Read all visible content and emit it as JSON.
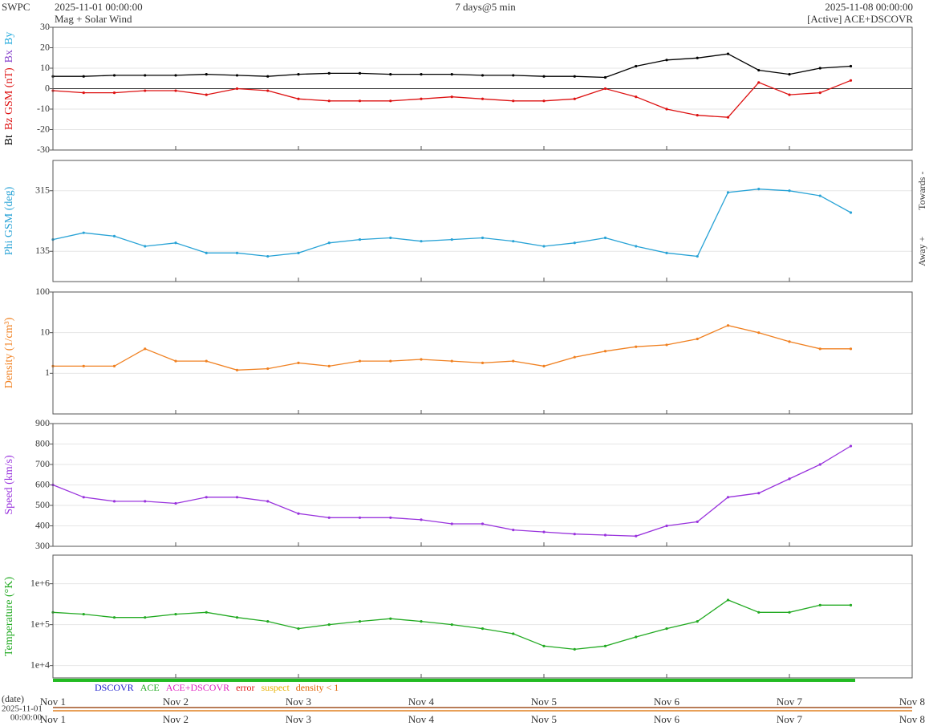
{
  "header": {
    "org": "SWPC",
    "start": "2025-11-01 00:00:00",
    "subtitle": "Mag + Solar Wind",
    "span": "7 days@5 min",
    "end": "2025-11-08 00:00:00",
    "source": "[Active] ACE+DSCOVR"
  },
  "legend": [
    {
      "text": "DSCOVR",
      "color": "#1a1acc"
    },
    {
      "text": "ACE",
      "color": "#22aa22"
    },
    {
      "text": "ACE+DSCOVR",
      "color": "#e020c0"
    },
    {
      "text": "error",
      "color": "#dd1111"
    },
    {
      "text": "suspect",
      "color": "#e8b000"
    },
    {
      "text": "density < 1",
      "color": "#e06000"
    }
  ],
  "x_axis": {
    "date_label": "(date)",
    "start_date": "2025-11-01",
    "start_time": "00:00:00",
    "xlim": [
      0,
      7
    ],
    "xticks": [
      {
        "value": 0,
        "label": "Nov 1"
      },
      {
        "value": 1,
        "label": "Nov 2"
      },
      {
        "value": 2,
        "label": "Nov 3"
      },
      {
        "value": 3,
        "label": "Nov 4"
      },
      {
        "value": 4,
        "label": "Nov 5"
      },
      {
        "value": 5,
        "label": "Nov 6"
      },
      {
        "value": 6,
        "label": "Nov 7"
      },
      {
        "value": 7,
        "label": "Nov 8"
      }
    ]
  },
  "chart_data": [
    {
      "type": "line",
      "ylabel_parts": [
        {
          "text": "Bt",
          "color": "#000000"
        },
        {
          "text": "Bz GSM (nT)",
          "color": "#dd1111"
        },
        {
          "text": "Bx",
          "color": "#8844cc"
        },
        {
          "text": "By",
          "color": "#22aadd"
        }
      ],
      "ylim": [
        -30,
        30
      ],
      "yticks": [
        -30,
        -20,
        -10,
        0,
        10,
        20,
        30
      ],
      "grid": true,
      "x": [
        0,
        0.25,
        0.5,
        0.75,
        1,
        1.25,
        1.5,
        1.75,
        2,
        2.25,
        2.5,
        2.75,
        3,
        3.25,
        3.5,
        3.75,
        4,
        4.25,
        4.5,
        4.75,
        5,
        5.25,
        5.5,
        5.75,
        6,
        6.25,
        6.5
      ],
      "series": [
        {
          "name": "Bt",
          "color": "#000000",
          "values": [
            6,
            6,
            6.5,
            6.5,
            6.5,
            7,
            6.5,
            6,
            7,
            7.5,
            7.5,
            7,
            7,
            7,
            6.5,
            6.5,
            6,
            6,
            5.5,
            11,
            14,
            15,
            17,
            9,
            7,
            10,
            11
          ]
        },
        {
          "name": "Bz",
          "color": "#dd1111",
          "values": [
            -1,
            -2,
            -2,
            -1,
            -1,
            -3,
            0,
            -1,
            -5,
            -6,
            -6,
            -6,
            -5,
            -4,
            -5,
            -6,
            -6,
            -5,
            0,
            -4,
            -10,
            -13,
            -14,
            3,
            -3,
            -2,
            4
          ]
        }
      ]
    },
    {
      "type": "line",
      "ylabel": "Phi GSM (deg)",
      "ylabel_color": "#29a3d6",
      "right_labels": [
        "Towards -",
        "Away +"
      ],
      "ylim": [
        45,
        405
      ],
      "yticks": [
        135,
        315
      ],
      "grid": true,
      "x": [
        0,
        0.25,
        0.5,
        0.75,
        1,
        1.25,
        1.5,
        1.75,
        2,
        2.25,
        2.5,
        2.75,
        3,
        3.25,
        3.5,
        3.75,
        4,
        4.25,
        4.5,
        4.75,
        5,
        5.25,
        5.5,
        5.75,
        6,
        6.25,
        6.5
      ],
      "series": [
        {
          "name": "Phi",
          "color": "#29a3d6",
          "values": [
            170,
            190,
            180,
            150,
            160,
            130,
            130,
            120,
            130,
            160,
            170,
            175,
            165,
            170,
            175,
            165,
            150,
            160,
            175,
            150,
            130,
            120,
            310,
            320,
            315,
            300,
            250
          ]
        }
      ]
    },
    {
      "type": "line",
      "ylabel": "Density (1/cm³)",
      "ylabel_color": "#f08020",
      "log": true,
      "ylim": [
        0.1,
        100
      ],
      "yticks": [
        1,
        10,
        100
      ],
      "grid": true,
      "x": [
        0,
        0.25,
        0.5,
        0.75,
        1,
        1.25,
        1.5,
        1.75,
        2,
        2.25,
        2.5,
        2.75,
        3,
        3.25,
        3.5,
        3.75,
        4,
        4.25,
        4.5,
        4.75,
        5,
        5.25,
        5.5,
        5.75,
        6,
        6.25,
        6.5
      ],
      "series": [
        {
          "name": "Density",
          "color": "#f08020",
          "values": [
            1.5,
            1.5,
            1.5,
            4,
            2,
            2,
            1.2,
            1.3,
            1.8,
            1.5,
            2,
            2,
            2.2,
            2,
            1.8,
            2,
            1.5,
            2.5,
            3.5,
            4.5,
            5,
            7,
            15,
            10,
            6,
            4,
            4
          ]
        }
      ]
    },
    {
      "type": "line",
      "ylabel": "Speed (km/s)",
      "ylabel_color": "#9933dd",
      "ylim": [
        300,
        900
      ],
      "yticks": [
        300,
        400,
        500,
        600,
        700,
        800,
        900
      ],
      "grid": true,
      "x": [
        0,
        0.25,
        0.5,
        0.75,
        1,
        1.25,
        1.5,
        1.75,
        2,
        2.25,
        2.5,
        2.75,
        3,
        3.25,
        3.5,
        3.75,
        4,
        4.25,
        4.5,
        4.75,
        5,
        5.25,
        5.5,
        5.75,
        6,
        6.25,
        6.5
      ],
      "series": [
        {
          "name": "Speed",
          "color": "#9933dd",
          "values": [
            600,
            540,
            520,
            520,
            510,
            540,
            540,
            520,
            460,
            440,
            440,
            440,
            430,
            410,
            410,
            380,
            370,
            360,
            355,
            350,
            400,
            420,
            540,
            560,
            630,
            700,
            790
          ]
        }
      ]
    },
    {
      "type": "line",
      "ylabel": "Temperature (°K)",
      "ylabel_color": "#22aa22",
      "log": true,
      "ylim": [
        5000,
        5000000
      ],
      "yticks": [
        {
          "value": 10000,
          "label": "1e+4"
        },
        {
          "value": 100000,
          "label": "1e+5"
        },
        {
          "value": 1000000,
          "label": "1e+6"
        }
      ],
      "grid": true,
      "x": [
        0,
        0.25,
        0.5,
        0.75,
        1,
        1.25,
        1.5,
        1.75,
        2,
        2.25,
        2.5,
        2.75,
        3,
        3.25,
        3.5,
        3.75,
        4,
        4.25,
        4.5,
        4.75,
        5,
        5.25,
        5.5,
        5.75,
        6,
        6.25,
        6.5
      ],
      "series": [
        {
          "name": "Temperature",
          "color": "#22aa22",
          "values": [
            200000,
            180000,
            150000,
            150000,
            180000,
            200000,
            150000,
            120000,
            80000,
            100000,
            120000,
            140000,
            120000,
            100000,
            80000,
            60000,
            30000,
            25000,
            30000,
            50000,
            80000,
            120000,
            400000,
            200000,
            200000,
            300000,
            300000
          ]
        }
      ]
    }
  ]
}
